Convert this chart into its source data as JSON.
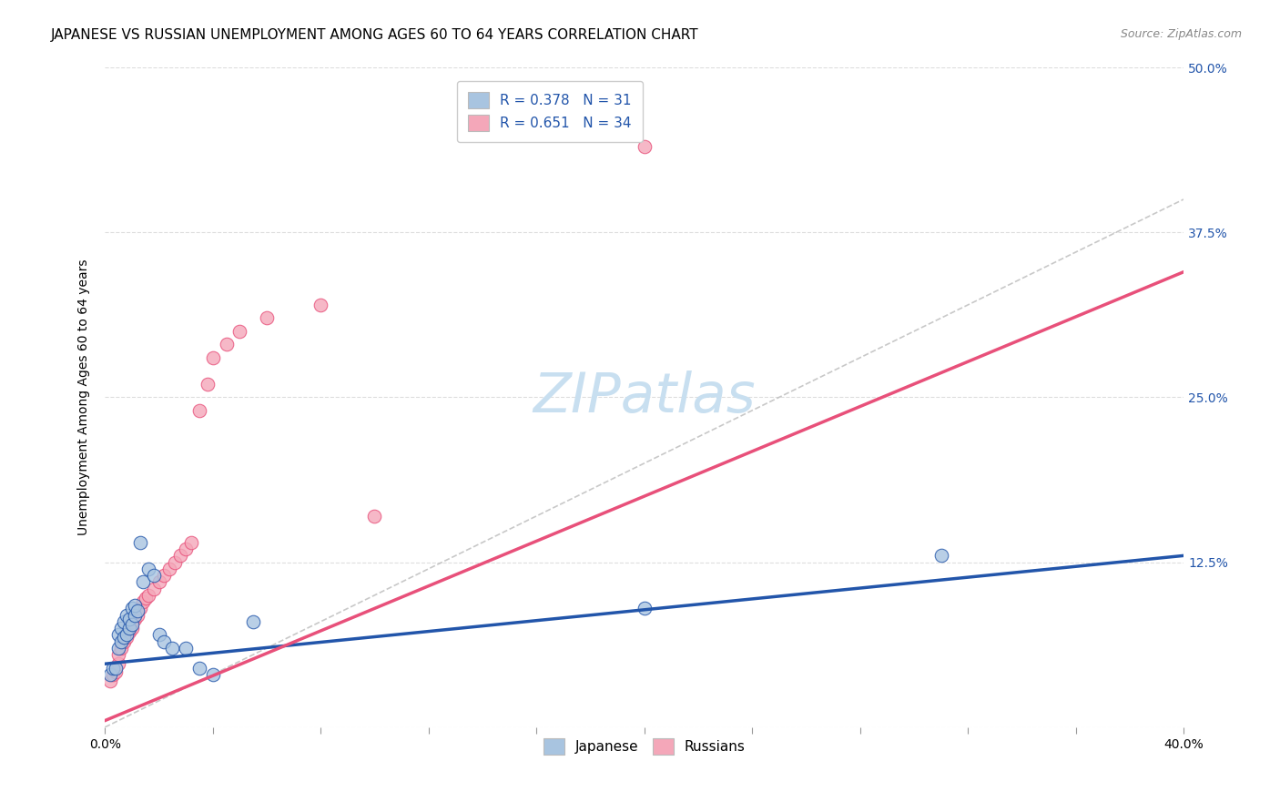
{
  "title": "JAPANESE VS RUSSIAN UNEMPLOYMENT AMONG AGES 60 TO 64 YEARS CORRELATION CHART",
  "source": "Source: ZipAtlas.com",
  "ylabel": "Unemployment Among Ages 60 to 64 years",
  "xlim": [
    0.0,
    0.4
  ],
  "ylim": [
    0.0,
    0.5
  ],
  "xticks_major": [
    0.0,
    0.1,
    0.2,
    0.3,
    0.4
  ],
  "xtick_labels": [
    "0.0%",
    "",
    "",
    "",
    "40.0%"
  ],
  "xticks_minor": [
    0.0,
    0.04,
    0.08,
    0.12,
    0.16,
    0.2,
    0.24,
    0.28,
    0.32,
    0.36,
    0.4
  ],
  "yticks": [
    0.0,
    0.125,
    0.25,
    0.375,
    0.5
  ],
  "ytick_labels_left": [
    "",
    "",
    "",
    "",
    ""
  ],
  "ytick_labels_right": [
    "",
    "12.5%",
    "25.0%",
    "37.5%",
    "50.0%"
  ],
  "japanese_x": [
    0.002,
    0.003,
    0.004,
    0.005,
    0.005,
    0.006,
    0.006,
    0.007,
    0.007,
    0.008,
    0.008,
    0.009,
    0.009,
    0.01,
    0.01,
    0.011,
    0.011,
    0.012,
    0.013,
    0.014,
    0.016,
    0.018,
    0.02,
    0.022,
    0.025,
    0.03,
    0.035,
    0.04,
    0.055,
    0.2,
    0.31
  ],
  "japanese_y": [
    0.04,
    0.045,
    0.045,
    0.06,
    0.07,
    0.065,
    0.075,
    0.068,
    0.08,
    0.07,
    0.085,
    0.075,
    0.082,
    0.078,
    0.09,
    0.085,
    0.092,
    0.088,
    0.14,
    0.11,
    0.12,
    0.115,
    0.07,
    0.065,
    0.06,
    0.06,
    0.045,
    0.04,
    0.08,
    0.09,
    0.13
  ],
  "russian_x": [
    0.002,
    0.003,
    0.004,
    0.005,
    0.005,
    0.006,
    0.007,
    0.008,
    0.009,
    0.01,
    0.01,
    0.011,
    0.012,
    0.013,
    0.014,
    0.015,
    0.016,
    0.018,
    0.02,
    0.022,
    0.024,
    0.026,
    0.028,
    0.03,
    0.032,
    0.035,
    0.038,
    0.04,
    0.045,
    0.05,
    0.06,
    0.08,
    0.1,
    0.2
  ],
  "russian_y": [
    0.035,
    0.04,
    0.042,
    0.048,
    0.055,
    0.06,
    0.065,
    0.068,
    0.072,
    0.075,
    0.08,
    0.082,
    0.085,
    0.09,
    0.095,
    0.098,
    0.1,
    0.105,
    0.11,
    0.115,
    0.12,
    0.125,
    0.13,
    0.135,
    0.14,
    0.24,
    0.26,
    0.28,
    0.29,
    0.3,
    0.31,
    0.32,
    0.16,
    0.44
  ],
  "jap_line_start_x": 0.0,
  "jap_line_start_y": 0.048,
  "jap_line_end_x": 0.4,
  "jap_line_end_y": 0.13,
  "rus_line_start_x": 0.0,
  "rus_line_start_y": 0.005,
  "rus_line_end_x": 0.4,
  "rus_line_end_y": 0.345,
  "japanese_color": "#a8c4e0",
  "russian_color": "#f4a7b9",
  "japanese_line_color": "#2255aa",
  "russian_line_color": "#e8507a",
  "reference_line_color": "#bbbbbb",
  "R_japanese": 0.378,
  "N_japanese": 31,
  "R_russian": 0.651,
  "N_russian": 34,
  "watermark": "ZIPatlas",
  "watermark_color": "#c8dff0",
  "title_fontsize": 11,
  "axis_label_fontsize": 10,
  "tick_fontsize": 10,
  "legend_fontsize": 11,
  "source_fontsize": 9,
  "marker_size": 110,
  "background_color": "#ffffff",
  "grid_color": "#dddddd"
}
